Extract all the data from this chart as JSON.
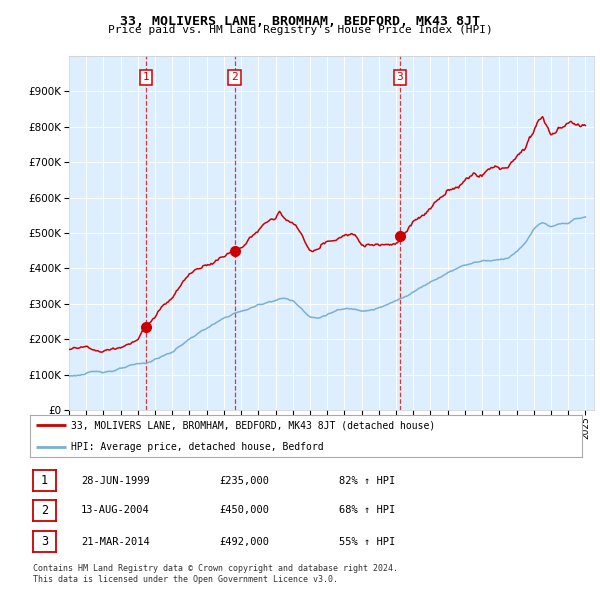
{
  "title": "33, MOLIVERS LANE, BROMHAM, BEDFORD, MK43 8JT",
  "subtitle": "Price paid vs. HM Land Registry's House Price Index (HPI)",
  "legend_line1": "33, MOLIVERS LANE, BROMHAM, BEDFORD, MK43 8JT (detached house)",
  "legend_line2": "HPI: Average price, detached house, Bedford",
  "footer1": "Contains HM Land Registry data © Crown copyright and database right 2024.",
  "footer2": "This data is licensed under the Open Government Licence v3.0.",
  "transactions": [
    {
      "num": 1,
      "date": "28-JUN-1999",
      "price": 235000,
      "hpi_pct": "82% ↑ HPI",
      "x_year": 1999.49
    },
    {
      "num": 2,
      "date": "13-AUG-2004",
      "price": 450000,
      "hpi_pct": "68% ↑ HPI",
      "x_year": 2004.62
    },
    {
      "num": 3,
      "date": "21-MAR-2014",
      "price": 492000,
      "hpi_pct": "55% ↑ HPI",
      "x_year": 2014.22
    }
  ],
  "hpi_color": "#7ab0d4",
  "price_color": "#cc0000",
  "dot_color": "#cc0000",
  "vline_color": "#cc0000",
  "plot_bg": "#ddeeff",
  "grid_color": "#ffffff",
  "ylim": [
    0,
    1000000
  ],
  "xlim_start": 1995.0,
  "xlim_end": 2025.5,
  "hpi_anchors": [
    [
      1995.0,
      95000
    ],
    [
      1996.0,
      103000
    ],
    [
      1997.0,
      108000
    ],
    [
      1998.0,
      118000
    ],
    [
      1999.0,
      125000
    ],
    [
      1999.5,
      128000
    ],
    [
      2000.0,
      140000
    ],
    [
      2001.0,
      160000
    ],
    [
      2002.0,
      198000
    ],
    [
      2003.0,
      228000
    ],
    [
      2004.0,
      252000
    ],
    [
      2004.62,
      268000
    ],
    [
      2005.0,
      272000
    ],
    [
      2006.0,
      290000
    ],
    [
      2007.0,
      308000
    ],
    [
      2007.5,
      313000
    ],
    [
      2008.0,
      305000
    ],
    [
      2008.5,
      285000
    ],
    [
      2009.0,
      265000
    ],
    [
      2009.5,
      260000
    ],
    [
      2010.0,
      272000
    ],
    [
      2010.5,
      282000
    ],
    [
      2011.0,
      285000
    ],
    [
      2012.0,
      285000
    ],
    [
      2013.0,
      295000
    ],
    [
      2014.0,
      312000
    ],
    [
      2014.22,
      318000
    ],
    [
      2015.0,
      340000
    ],
    [
      2016.0,
      370000
    ],
    [
      2017.0,
      400000
    ],
    [
      2018.0,
      425000
    ],
    [
      2019.0,
      438000
    ],
    [
      2020.0,
      442000
    ],
    [
      2020.5,
      450000
    ],
    [
      2021.0,
      468000
    ],
    [
      2021.5,
      490000
    ],
    [
      2022.0,
      528000
    ],
    [
      2022.3,
      545000
    ],
    [
      2022.5,
      548000
    ],
    [
      2023.0,
      535000
    ],
    [
      2023.5,
      538000
    ],
    [
      2024.0,
      545000
    ],
    [
      2024.5,
      555000
    ],
    [
      2025.0,
      560000
    ]
  ],
  "price_anchors_seg1": [
    [
      1995.0,
      171000
    ],
    [
      1996.0,
      178000
    ],
    [
      1997.0,
      163000
    ],
    [
      1998.0,
      178000
    ],
    [
      1999.0,
      195000
    ],
    [
      1999.49,
      235000
    ]
  ],
  "price_anchors_seg2": [
    [
      1999.49,
      235000
    ],
    [
      2000.0,
      265000
    ],
    [
      2001.0,
      310000
    ],
    [
      2002.0,
      370000
    ],
    [
      2003.0,
      400000
    ],
    [
      2004.0,
      430000
    ],
    [
      2004.62,
      450000
    ],
    [
      2005.0,
      460000
    ],
    [
      2005.5,
      480000
    ],
    [
      2006.0,
      500000
    ],
    [
      2006.5,
      520000
    ],
    [
      2007.0,
      530000
    ],
    [
      2007.2,
      555000
    ],
    [
      2007.5,
      530000
    ],
    [
      2008.0,
      510000
    ],
    [
      2008.5,
      480000
    ],
    [
      2009.0,
      430000
    ],
    [
      2009.5,
      430000
    ],
    [
      2010.0,
      450000
    ],
    [
      2010.5,
      455000
    ],
    [
      2011.0,
      460000
    ],
    [
      2011.5,
      465000
    ],
    [
      2012.0,
      455000
    ],
    [
      2012.5,
      460000
    ],
    [
      2013.0,
      465000
    ],
    [
      2013.5,
      475000
    ],
    [
      2014.0,
      478000
    ],
    [
      2014.22,
      492000
    ]
  ],
  "price_anchors_seg3": [
    [
      2014.22,
      492000
    ],
    [
      2015.0,
      530000
    ],
    [
      2016.0,
      580000
    ],
    [
      2017.0,
      625000
    ],
    [
      2018.0,
      665000
    ],
    [
      2018.5,
      680000
    ],
    [
      2019.0,
      685000
    ],
    [
      2019.5,
      700000
    ],
    [
      2020.0,
      695000
    ],
    [
      2020.5,
      710000
    ],
    [
      2021.0,
      730000
    ],
    [
      2021.5,
      760000
    ],
    [
      2022.0,
      820000
    ],
    [
      2022.3,
      850000
    ],
    [
      2022.5,
      860000
    ],
    [
      2022.7,
      840000
    ],
    [
      2023.0,
      820000
    ],
    [
      2023.5,
      840000
    ],
    [
      2024.0,
      850000
    ],
    [
      2024.5,
      855000
    ],
    [
      2025.0,
      860000
    ]
  ]
}
